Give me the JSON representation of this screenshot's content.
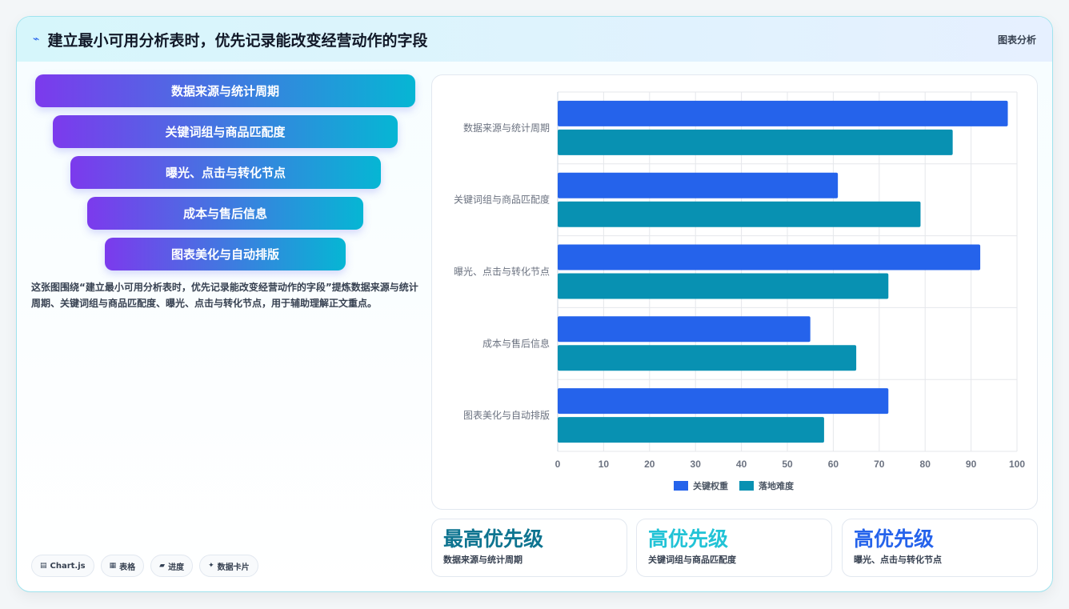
{
  "header": {
    "title": "建立最小可用分析表时，优先记录能改变经营动作的字段",
    "tag": "图表分析",
    "icon": "trend-icon"
  },
  "funnel": {
    "steps": [
      "数据来源与统计周期",
      "关键词组与商品匹配度",
      "曝光、点击与转化节点",
      "成本与售后信息",
      "图表美化与自动排版"
    ]
  },
  "description": "这张图围绕“建立最小可用分析表时，优先记录能改变经营动作的字段”提炼数据来源与统计周期、关键词组与商品匹配度、曝光、点击与转化节点，用于辅助理解正文重点。",
  "pills": [
    {
      "icon": "chart-icon",
      "label": "Chart.js"
    },
    {
      "icon": "table-icon",
      "label": "表格"
    },
    {
      "icon": "progress-icon",
      "label": "进度"
    },
    {
      "icon": "sparkle-icon",
      "label": "数据卡片"
    }
  ],
  "kpis": [
    {
      "value": "最高优先级",
      "label": "数据来源与统计周期",
      "color": "#0e7490"
    },
    {
      "value": "高优先级",
      "label": "关键词组与商品匹配度",
      "color": "#22c3d6"
    },
    {
      "value": "高优先级",
      "label": "曝光、点击与转化节点",
      "color": "#2563eb"
    }
  ],
  "chart_data": {
    "type": "bar",
    "orientation": "horizontal",
    "categories": [
      "数据来源与统计周期",
      "关键词组与商品匹配度",
      "曝光、点击与转化节点",
      "成本与售后信息",
      "图表美化与自动排版"
    ],
    "series": [
      {
        "name": "关键权重",
        "values": [
          98,
          61,
          92,
          55,
          72
        ],
        "color": "#2563eb"
      },
      {
        "name": "落地难度",
        "values": [
          86,
          79,
          72,
          65,
          58
        ],
        "color": "#0891b2"
      }
    ],
    "xlim": [
      0,
      100
    ],
    "xticks": [
      0,
      10,
      20,
      30,
      40,
      50,
      60,
      70,
      80,
      90,
      100
    ],
    "grid": true,
    "legend": "bottom"
  }
}
